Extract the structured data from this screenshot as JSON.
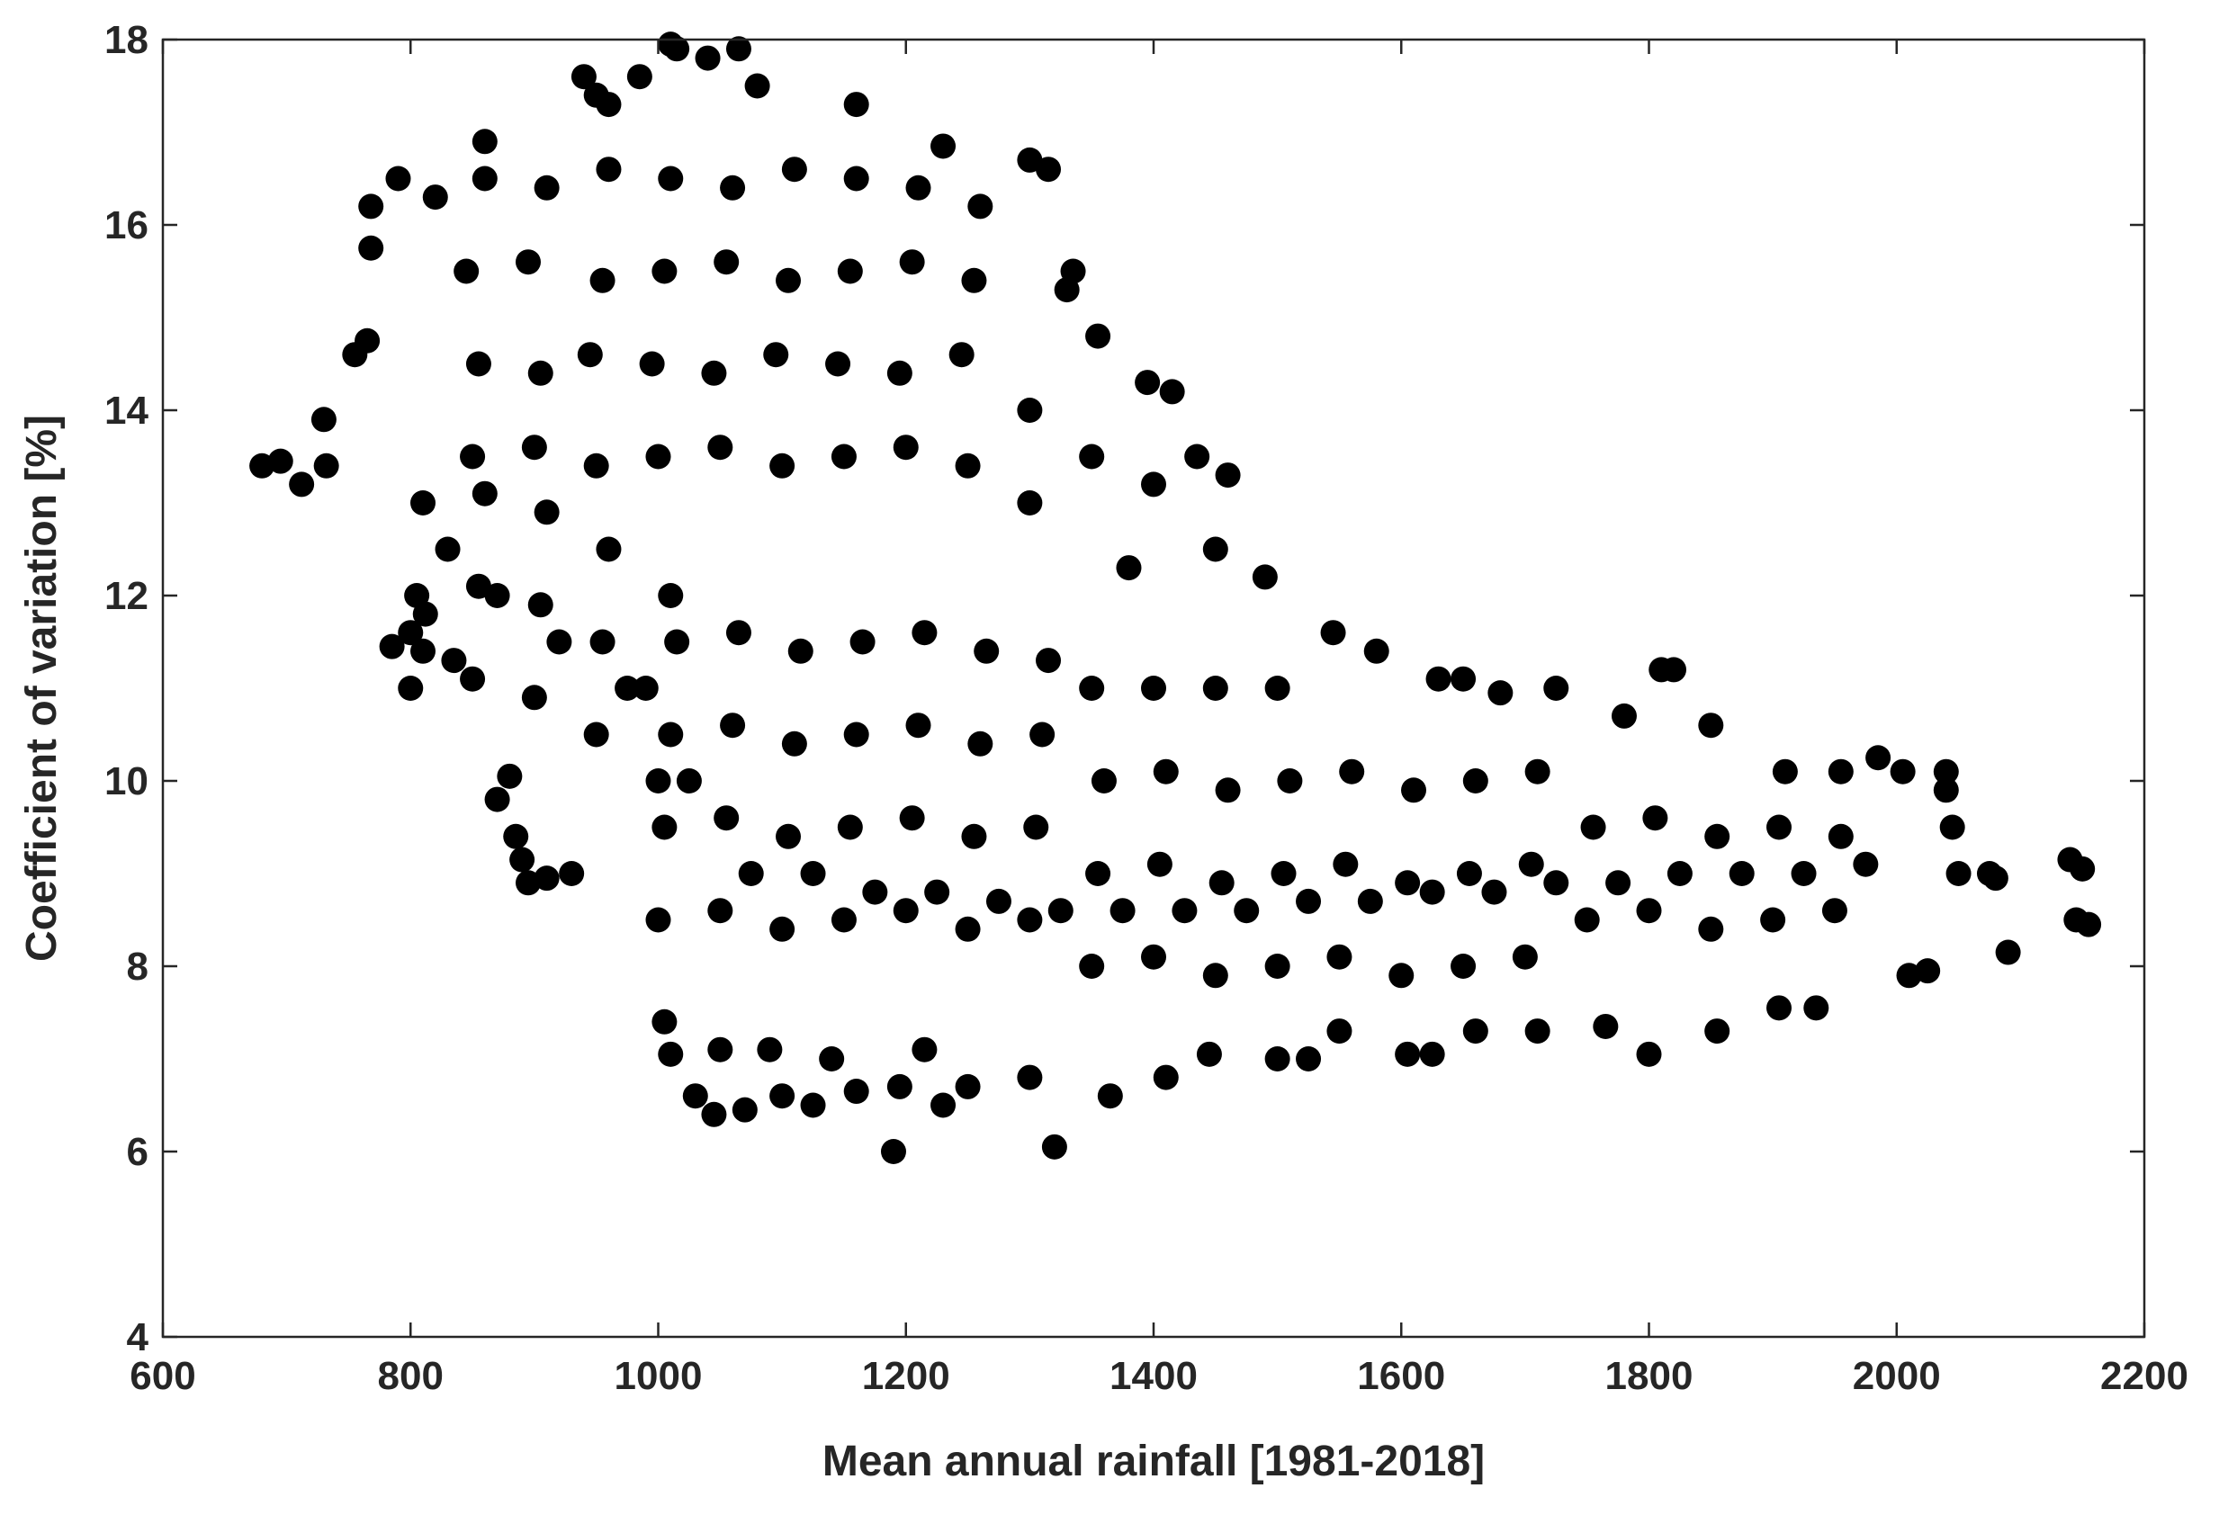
{
  "chart_data": {
    "type": "scatter",
    "xlabel": "Mean annual rainfall [1981-2018]",
    "ylabel": "Coefficient of variation [%]",
    "color": "#000000",
    "xlim": [
      600,
      2200
    ],
    "xticks": [
      600,
      800,
      1000,
      1200,
      1400,
      1600,
      1800,
      2000,
      2200
    ],
    "ylim": [
      4,
      18
    ],
    "yticks": [
      4,
      6,
      8,
      10,
      12,
      14,
      16,
      18
    ],
    "x": [
      680,
      695,
      712,
      730,
      732,
      755,
      765,
      768,
      768,
      785,
      790,
      800,
      810,
      812,
      820,
      835,
      860,
      870,
      880,
      885,
      890,
      895,
      910,
      930,
      940,
      950,
      960,
      985,
      1010,
      1015,
      1040,
      1065,
      1080,
      1160,
      1230,
      1300,
      1315,
      1335,
      1330,
      1355,
      1395,
      1415,
      1435,
      1460,
      1490,
      1545,
      1580,
      1630,
      1650,
      1680,
      1725,
      1780,
      1810,
      1820,
      1850,
      1910,
      1955,
      1985,
      2005,
      2040,
      2040,
      2045,
      2050,
      2075,
      2080,
      2140,
      2150,
      2145,
      2155,
      2090,
      2010,
      2025,
      1935,
      1905,
      1855,
      1800,
      1765,
      1710,
      1660,
      1625,
      1605,
      1550,
      1500,
      1525,
      1445,
      1410,
      1365,
      1320,
      1300,
      1250,
      1230,
      1190,
      1195,
      1160,
      1125,
      1100,
      1070,
      1045,
      1030,
      1010,
      1005,
      1050,
      1090,
      1140,
      1215,
      850,
      855,
      845,
      860,
      900,
      905,
      895,
      910,
      950,
      945,
      955,
      960,
      1000,
      995,
      1005,
      1010,
      1050,
      1045,
      1055,
      1060,
      1100,
      1095,
      1105,
      1110,
      1150,
      1145,
      1155,
      1160,
      1200,
      1195,
      1205,
      1210,
      1250,
      1245,
      1255,
      1260,
      1300,
      1300,
      1350,
      1400,
      1450,
      1380,
      800,
      805,
      810,
      850,
      855,
      860,
      900,
      905,
      910,
      950,
      955,
      960,
      1000,
      990,
      1010,
      1000,
      1005,
      1010,
      1015,
      1050,
      1055,
      1060,
      1065,
      1100,
      1105,
      1110,
      1115,
      1150,
      1155,
      1160,
      1165,
      1200,
      1205,
      1210,
      1215,
      1250,
      1255,
      1260,
      1265,
      1300,
      1305,
      1310,
      1315,
      1350,
      1355,
      1360,
      1400,
      1405,
      1410,
      1450,
      1455,
      1460,
      1500,
      1505,
      1510,
      1550,
      1555,
      1560,
      1600,
      1605,
      1610,
      1650,
      1655,
      1660,
      1700,
      1705,
      1710,
      1350,
      1400,
      1450,
      1500,
      1750,
      1755,
      1800,
      1805,
      1850,
      1855,
      1900,
      1905,
      1950,
      1955,
      830,
      870,
      920,
      975,
      1025,
      1075,
      1125,
      1175,
      1225,
      1275,
      1325,
      1375,
      1425,
      1475,
      1525,
      1575,
      1625,
      1675,
      1725,
      1775,
      1825,
      1875,
      1925,
      1975
    ],
    "y": [
      13.4,
      13.45,
      13.2,
      13.9,
      13.4,
      14.6,
      14.75,
      16.2,
      15.75,
      11.45,
      16.5,
      11.6,
      11.4,
      11.8,
      16.3,
      11.3,
      16.9,
      9.8,
      10.05,
      9.4,
      9.15,
      8.9,
      8.95,
      9.0,
      17.6,
      17.4,
      17.3,
      17.6,
      17.95,
      17.9,
      17.8,
      17.9,
      17.5,
      17.3,
      16.85,
      16.7,
      16.6,
      15.5,
      15.3,
      14.8,
      14.3,
      14.2,
      13.5,
      13.3,
      12.2,
      11.6,
      11.4,
      11.1,
      11.1,
      10.95,
      11.0,
      10.7,
      11.2,
      11.2,
      10.6,
      10.1,
      10.1,
      10.25,
      10.1,
      10.1,
      9.9,
      9.5,
      9.0,
      9.0,
      8.95,
      9.15,
      9.05,
      8.5,
      8.45,
      8.15,
      7.9,
      7.95,
      7.55,
      7.55,
      7.3,
      7.05,
      7.35,
      7.3,
      7.3,
      7.05,
      7.05,
      7.3,
      7.0,
      7.0,
      7.05,
      6.8,
      6.6,
      6.05,
      6.8,
      6.7,
      6.5,
      6.0,
      6.7,
      6.65,
      6.5,
      6.6,
      6.45,
      6.4,
      6.6,
      7.05,
      7.4,
      7.1,
      7.1,
      7.0,
      7.1,
      13.5,
      14.5,
      15.5,
      16.5,
      13.6,
      14.4,
      15.6,
      16.4,
      13.4,
      14.6,
      15.4,
      16.6,
      13.5,
      14.5,
      15.5,
      16.5,
      13.6,
      14.4,
      15.6,
      16.4,
      13.4,
      14.6,
      15.4,
      16.6,
      13.5,
      14.5,
      15.5,
      16.5,
      13.6,
      14.4,
      15.6,
      16.4,
      13.4,
      14.6,
      15.4,
      16.2,
      14.0,
      13.0,
      13.5,
      13.2,
      12.5,
      12.3,
      11.0,
      12.0,
      13.0,
      11.1,
      12.1,
      13.1,
      10.9,
      11.9,
      12.9,
      10.5,
      11.5,
      12.5,
      10.0,
      11.0,
      12.0,
      8.5,
      9.5,
      10.5,
      11.5,
      8.6,
      9.6,
      10.6,
      11.6,
      8.4,
      9.4,
      10.4,
      11.4,
      8.5,
      9.5,
      10.5,
      11.5,
      8.6,
      9.6,
      10.6,
      11.6,
      8.4,
      9.4,
      10.4,
      11.4,
      8.5,
      9.5,
      10.5,
      11.3,
      8.0,
      9.0,
      10.0,
      8.1,
      9.1,
      10.1,
      7.9,
      8.9,
      9.9,
      8.0,
      9.0,
      10.0,
      8.1,
      9.1,
      10.1,
      7.9,
      8.9,
      9.9,
      8.0,
      9.0,
      10.0,
      8.1,
      9.1,
      10.1,
      11.0,
      11.0,
      11.0,
      11.0,
      8.5,
      9.5,
      8.6,
      9.6,
      8.4,
      9.4,
      8.5,
      9.5,
      8.6,
      9.4,
      12.5,
      12.0,
      11.5,
      11.0,
      10.0,
      9.0,
      9.0,
      8.8,
      8.8,
      8.7,
      8.6,
      8.6,
      8.6,
      8.6,
      8.7,
      8.7,
      8.8,
      8.8,
      8.9,
      8.9,
      9.0,
      9.0,
      9.0,
      9.1
    ]
  }
}
